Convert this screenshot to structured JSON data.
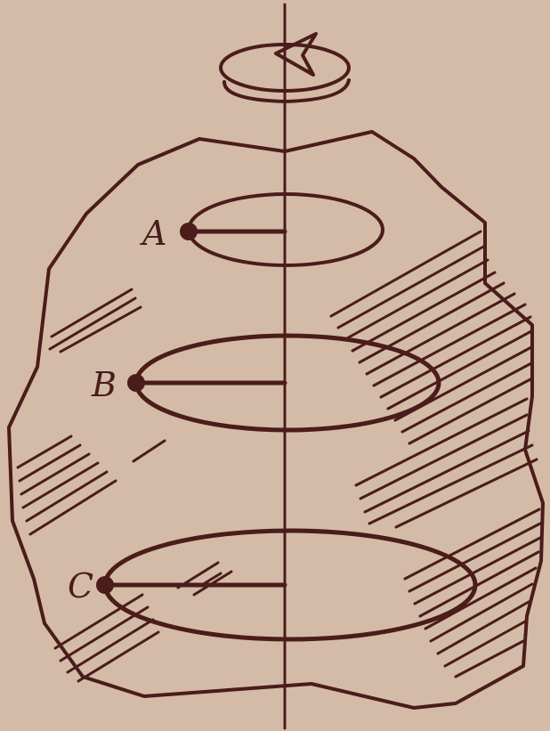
{
  "points": [
    {
      "id": "A",
      "label": "A"
    },
    {
      "id": "B",
      "label": "B"
    },
    {
      "id": "C",
      "label": "C"
    }
  ],
  "colors": {
    "background": "#d4bba8",
    "ink": "#4a1c1a"
  },
  "icons": {
    "rotation": "rotation-arrow-icon"
  }
}
